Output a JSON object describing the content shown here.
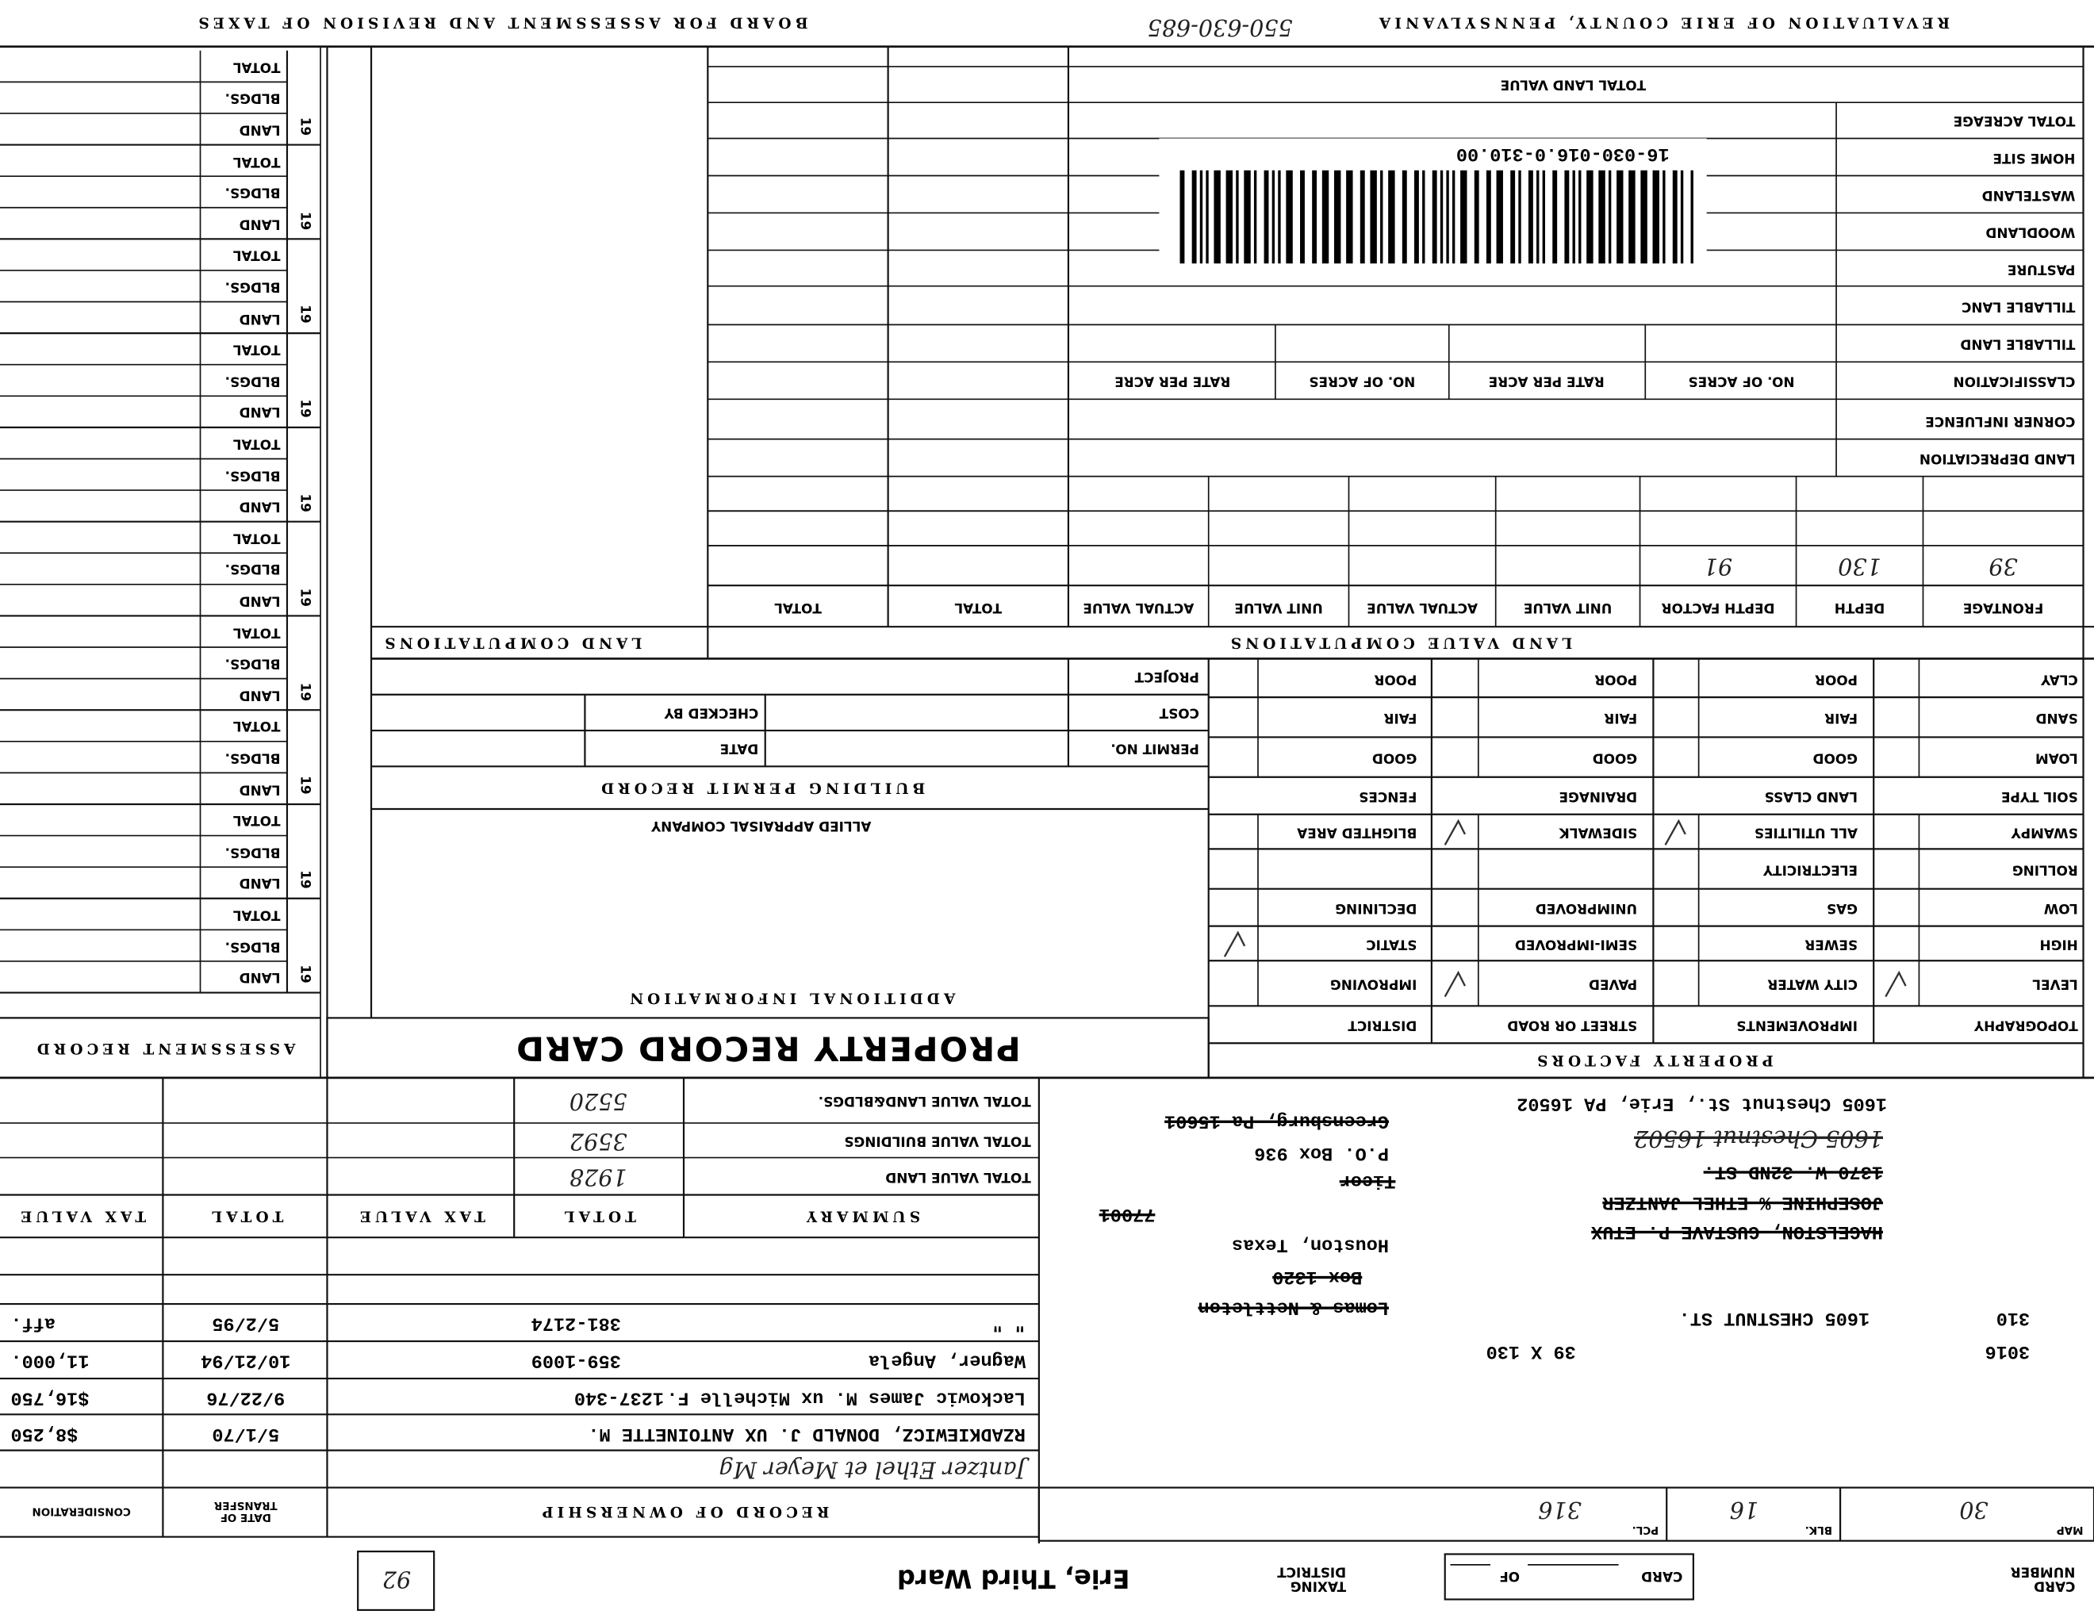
{
  "header": {
    "left_title": "REVALUATION OF ERIE COUNTY, PENNSYLVANIA",
    "file_number": "550-630-685",
    "right_title": "BOARD FOR ASSESSMENT AND REVISION OF TAXES"
  },
  "card": {
    "card_number_label": "CARD NUMBER",
    "card_label": "CARD",
    "of_label": "OF",
    "taxing_district_label": "TAXING DISTRICT",
    "taxing_district": "Erie, Third Ward",
    "ward": "92"
  },
  "parcel": {
    "map_label": "MAP",
    "map": "30",
    "blk_label": "BLK.",
    "blk": "16",
    "pcl_label": "PCL.",
    "pcl": "316"
  },
  "property": {
    "lines": [
      {
        "text": "3016"
      },
      {
        "text": "39 X 130"
      },
      {
        "text": "310"
      },
      {
        "text": "1605 CHESTNUT ST."
      },
      {
        "text": "HAGELSTON, GUSTAVE P. ETUX",
        "struck": true
      },
      {
        "text": "JOSEPHINE % ETHEL JANTZER",
        "struck": true
      },
      {
        "text": "1370 W. 32ND ST.",
        "struck": true
      },
      {
        "text": "1605 Chestnut 16502",
        "struck": true,
        "handwritten": true
      },
      {
        "text": "1605 Chestnut St., Erie, PA 16502"
      },
      {
        "text": "Lomas & Nettleton",
        "struck": true
      },
      {
        "text": "Box 1320",
        "struck": true
      },
      {
        "text": "Houston, Texas"
      },
      {
        "text": "77001",
        "struck": true
      },
      {
        "text": "Ticor",
        "struck": true
      },
      {
        "text": "P.O. Box 936"
      },
      {
        "text": "Greensburg, Pa 15601",
        "struck": true
      }
    ]
  },
  "ownership": {
    "title": "RECORD OF OWNERSHIP",
    "date_header": "DATE OF TRANSFER",
    "consideration_header": "CONSIDERATION",
    "rows": [
      {
        "name": "Jantzer Ethel et Meyer Mg"
      },
      {
        "name": "RZADKIEWICZ, DONALD J. UX ANTOINETTE M.",
        "date": "5/1/70",
        "consideration": "$8,250"
      },
      {
        "name": "Lackowic James M. ux Michelle F.",
        "book": "1237-340",
        "date": "9/22/76",
        "consideration": "$16,750"
      },
      {
        "name": "Wagner, Angela",
        "book": "359-1009",
        "date": "10/21/94",
        "consideration": "11,000."
      },
      {
        "name": "\"        \"",
        "book": "381-2174",
        "date": "5/2/95",
        "consideration": "aff."
      }
    ]
  },
  "summary": {
    "title": "SUMMARY",
    "headers": [
      "TOTAL",
      "TAX VALUE",
      "TOTAL",
      "TAX VALUE"
    ],
    "rows": [
      {
        "label": "TOTAL VALUE LAND",
        "total": "1928"
      },
      {
        "label": "TOTAL VALUE BUILDINGS",
        "total": "3592"
      },
      {
        "label": "TOTAL VALUE LAND&BLDGS.",
        "total": "5520"
      }
    ]
  },
  "property_factors": {
    "title": "PROPERTY FACTORS",
    "headers": [
      "TOPOGRAPHY",
      "IMPROVEMENTS",
      "STREET OR ROAD",
      "DISTRICT"
    ],
    "rows": [
      [
        {
          "label": "LEVEL",
          "checked": true
        },
        {
          "label": "CITY WATER"
        },
        {
          "label": "PAVED",
          "checked": true
        },
        {
          "label": "IMPROVING"
        }
      ],
      [
        {
          "label": "HIGH"
        },
        {
          "label": "SEWER"
        },
        {
          "label": "SEMI-IMPROVED"
        },
        {
          "label": "STATIC",
          "checked": true
        }
      ],
      [
        {
          "label": "LOW"
        },
        {
          "label": "GAS"
        },
        {
          "label": "UNIMPROVED"
        },
        {
          "label": "DECLINING"
        }
      ],
      [
        {
          "label": "ROLLING"
        },
        {
          "label": "ELECTRICITY"
        }
      ],
      [
        {
          "label": "SWAMPY"
        },
        {
          "label": "ALL UTILITIES",
          "checked": true
        },
        {
          "label": "SIDEWALK",
          "checked": true
        },
        {
          "label": "BLIGHTED AREA"
        }
      ]
    ],
    "soil_headers": [
      "SOIL TYPE",
      "LAND CLASS",
      "DRAINAGE",
      "FENCES"
    ],
    "soil_rows": [
      [
        "LOAM",
        "GOOD",
        "GOOD",
        "GOOD"
      ],
      [
        "SAND",
        "FAIR",
        "FAIR",
        "FAIR"
      ],
      [
        "CLAY",
        "POOR",
        "POOR",
        "POOR"
      ]
    ]
  },
  "record_card": {
    "title": "PROPERTY RECORD CARD",
    "additional_info": "ADDITIONAL INFORMATION",
    "appraiser": "ALLIED APPRAISAL COMPANY",
    "permit_title": "BUILDING PERMIT RECORD",
    "permit_labels": [
      "PERMIT NO.",
      "DATE",
      "COST",
      "CHECKED BY",
      "PROJECT"
    ]
  },
  "assessment": {
    "title": "ASSESSMENT RECORD",
    "year_prefix": "19",
    "row_labels": [
      "LAND",
      "BLDGS.",
      "TOTAL"
    ]
  },
  "land_value": {
    "title": "LAND VALUE COMPUTATIONS",
    "columns": [
      "FRONTAGE",
      "DEPTH",
      "DEPTH FACTOR",
      "UNIT VALUE",
      "ACTUAL VALUE",
      "UNIT VALUE",
      "ACTUAL VALUE",
      "TOTAL",
      "TOTAL"
    ],
    "entries": [
      "39",
      "130",
      "91"
    ],
    "land_depreciation": "LAND DEPRECIATION",
    "corner_influence": "CORNER INFLUENCE",
    "classification": "CLASSIFICATION",
    "acre_headers": [
      "NO. OF ACRES",
      "RATE PER ACRE",
      "NO. OF ACRES",
      "RATE PER ACRE"
    ],
    "classes": [
      "TILLABLE LAND",
      "TILLABLE LANC",
      "PASTURE",
      "WOODLAND",
      "WASTELAND",
      "HOME SITE",
      "TOTAL ACREAGE"
    ],
    "total_land_value": "TOTAL LAND VALUE",
    "parcel_code": "16-030-016.0-310.00"
  },
  "land_computations": {
    "title": "LAND COMPUTATIONS"
  }
}
